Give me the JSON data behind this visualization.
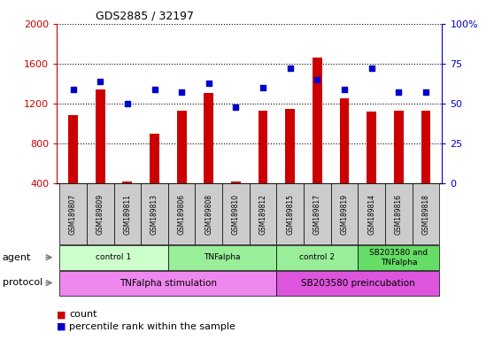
{
  "title": "GDS2885 / 32197",
  "samples": [
    "GSM189807",
    "GSM189809",
    "GSM189811",
    "GSM189813",
    "GSM189806",
    "GSM189808",
    "GSM189810",
    "GSM189812",
    "GSM189815",
    "GSM189817",
    "GSM189819",
    "GSM189814",
    "GSM189816",
    "GSM189818"
  ],
  "counts": [
    1090,
    1340,
    420,
    900,
    1130,
    1310,
    420,
    1130,
    1150,
    1660,
    1250,
    1120,
    1130,
    1130
  ],
  "percentiles": [
    59,
    64,
    50,
    59,
    57,
    63,
    48,
    60,
    72,
    65,
    59,
    72,
    57,
    57
  ],
  "bar_color": "#cc0000",
  "dot_color": "#0000cc",
  "ylim_left": [
    400,
    2000
  ],
  "ylim_right": [
    0,
    100
  ],
  "yticks_left": [
    400,
    800,
    1200,
    1600,
    2000
  ],
  "yticks_right": [
    0,
    25,
    50,
    75,
    100
  ],
  "agent_groups": [
    {
      "label": "control 1",
      "start": 0,
      "end": 4,
      "color": "#ccffcc"
    },
    {
      "label": "TNFalpha",
      "start": 4,
      "end": 8,
      "color": "#99ee99"
    },
    {
      "label": "control 2",
      "start": 8,
      "end": 11,
      "color": "#99ee99"
    },
    {
      "label": "SB203580 and\nTNFalpha",
      "start": 11,
      "end": 14,
      "color": "#66dd66"
    }
  ],
  "protocol_groups": [
    {
      "label": "TNFalpha stimulation",
      "start": 0,
      "end": 8,
      "color": "#ee88ee"
    },
    {
      "label": "SB203580 preincubation",
      "start": 8,
      "end": 14,
      "color": "#dd55dd"
    }
  ],
  "legend_count_color": "#cc0000",
  "legend_dot_color": "#0000cc",
  "left_axis_color": "#cc0000",
  "right_axis_color": "#0000cc",
  "sample_box_color": "#cccccc",
  "n_samples": 14,
  "bar_width": 0.35
}
